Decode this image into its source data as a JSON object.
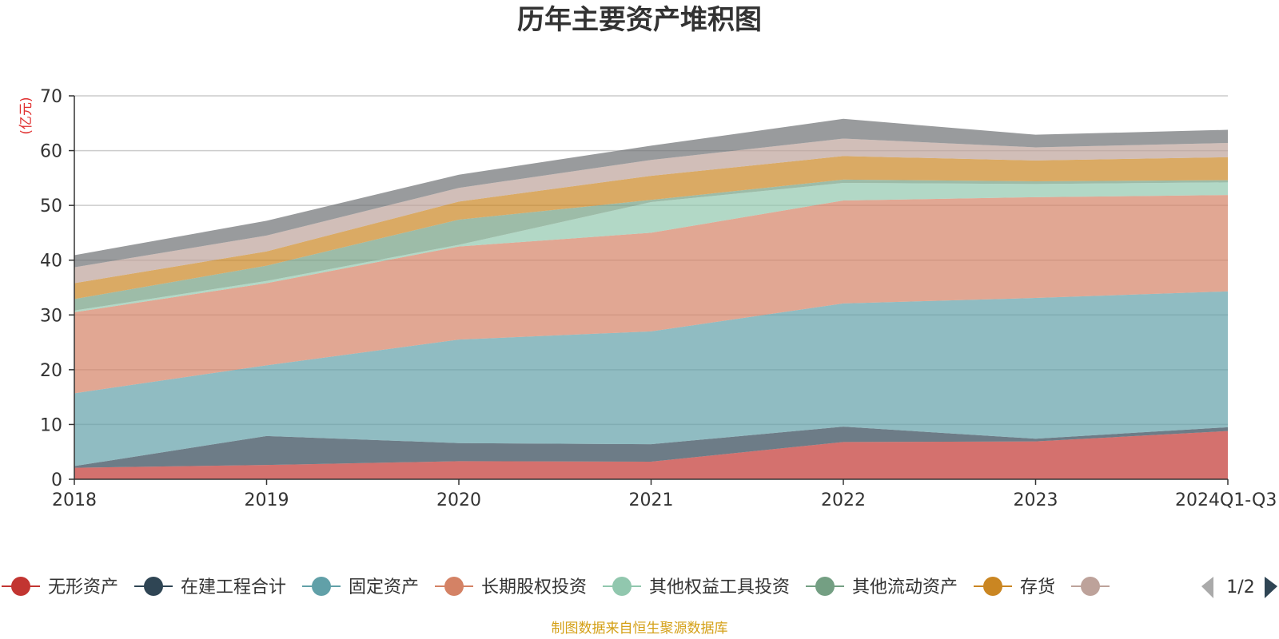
{
  "chart_data": {
    "type": "area",
    "stacked": true,
    "title": "历年主要资产堆积图",
    "unit": "(亿元)",
    "ylim": [
      0,
      70
    ],
    "yticks": [
      0,
      10,
      20,
      30,
      40,
      50,
      60,
      70
    ],
    "grid": true,
    "categories": [
      "2018",
      "2019",
      "2020",
      "2021",
      "2022",
      "2023",
      "2024Q1-Q3"
    ],
    "series": [
      {
        "name": "无形资产",
        "color": "#c23531",
        "values": [
          2.1,
          2.6,
          3.3,
          3.2,
          6.8,
          6.9,
          8.8
        ]
      },
      {
        "name": "在建工程合计",
        "color": "#2f4554",
        "values": [
          0.3,
          5.3,
          3.3,
          3.2,
          2.8,
          0.5,
          0.7
        ]
      },
      {
        "name": "固定资产",
        "color": "#61a0a8",
        "values": [
          13.3,
          12.9,
          18.9,
          20.6,
          22.5,
          25.7,
          24.8
        ]
      },
      {
        "name": "长期股权投资",
        "color": "#d48265",
        "values": [
          14.8,
          15.0,
          17.0,
          18.0,
          18.8,
          18.4,
          17.6
        ]
      },
      {
        "name": "其他权益工具投资",
        "color": "#91c7ae",
        "values": [
          0.3,
          0.4,
          0.3,
          5.6,
          3.2,
          2.4,
          2.3
        ]
      },
      {
        "name": "其他流动资产",
        "color": "#749f83",
        "values": [
          2.1,
          2.8,
          4.6,
          0.4,
          0.6,
          0.5,
          0.4
        ]
      },
      {
        "name": "存货",
        "color": "#ca8622",
        "values": [
          2.9,
          2.6,
          3.3,
          4.4,
          4.3,
          3.8,
          4.2
        ]
      },
      {
        "name": "",
        "color": "#bda29a",
        "values": [
          2.9,
          2.9,
          2.5,
          2.9,
          3.2,
          2.4,
          2.6
        ]
      },
      {
        "name": "",
        "color": "#6e7074",
        "values": [
          2.2,
          2.7,
          2.4,
          2.6,
          3.6,
          2.3,
          2.4
        ]
      }
    ],
    "legend": {
      "position": "bottom",
      "items": [
        "无形资产",
        "在建工程合计",
        "固定资产",
        "长期股权投资",
        "其他权益工具投资",
        "其他流动资产",
        "存货",
        ""
      ],
      "page": "1/2"
    },
    "source": "制图数据来自恒生聚源数据库"
  }
}
